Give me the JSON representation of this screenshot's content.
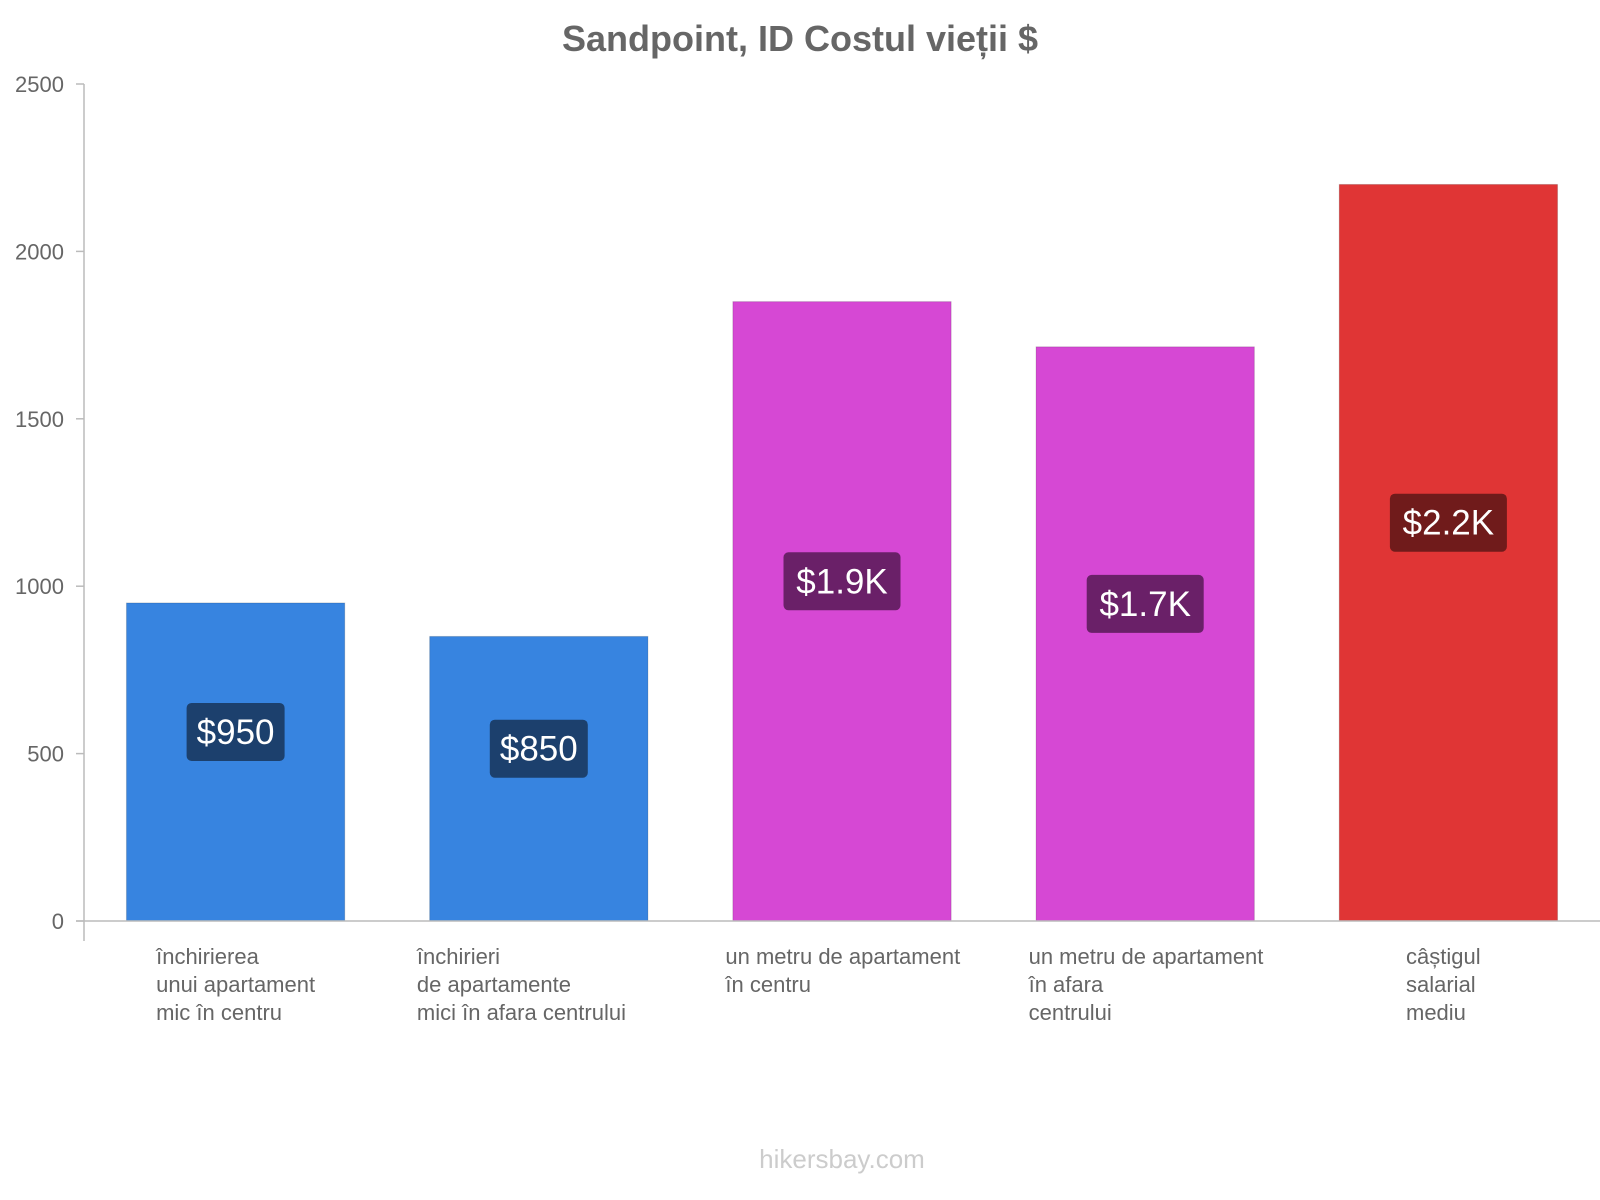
{
  "chart_data": {
    "type": "bar",
    "title": "Sandpoint, ID Costul vieții $",
    "categories": [
      [
        "închirierea",
        "unui apartament",
        "mic în centru"
      ],
      [
        "închirieri",
        "de apartamente",
        "mici în afara centrului"
      ],
      [
        "un metru de apartament",
        "în centru"
      ],
      [
        "un metru de apartament",
        "în afara",
        "centrului"
      ],
      [
        "câștigul",
        "salarial",
        "mediu"
      ]
    ],
    "values": [
      950,
      850,
      1850,
      1715,
      2200
    ],
    "value_labels": [
      "$950",
      "$850",
      "$1.9K",
      "$1.7K",
      "$2.2K"
    ],
    "bar_colors": [
      "#3784e0",
      "#3784e0",
      "#d648d4",
      "#d648d4",
      "#e03535"
    ],
    "label_bg_colors": [
      "#1c406d",
      "#1c406d",
      "#6a2068",
      "#6a2068",
      "#701b1b"
    ],
    "ylim": [
      0,
      2500
    ],
    "yticks": [
      0,
      500,
      1000,
      1500,
      2000,
      2500
    ],
    "xlabel": "",
    "ylabel": "",
    "grid": false
  },
  "watermark": "hikersbay.com"
}
